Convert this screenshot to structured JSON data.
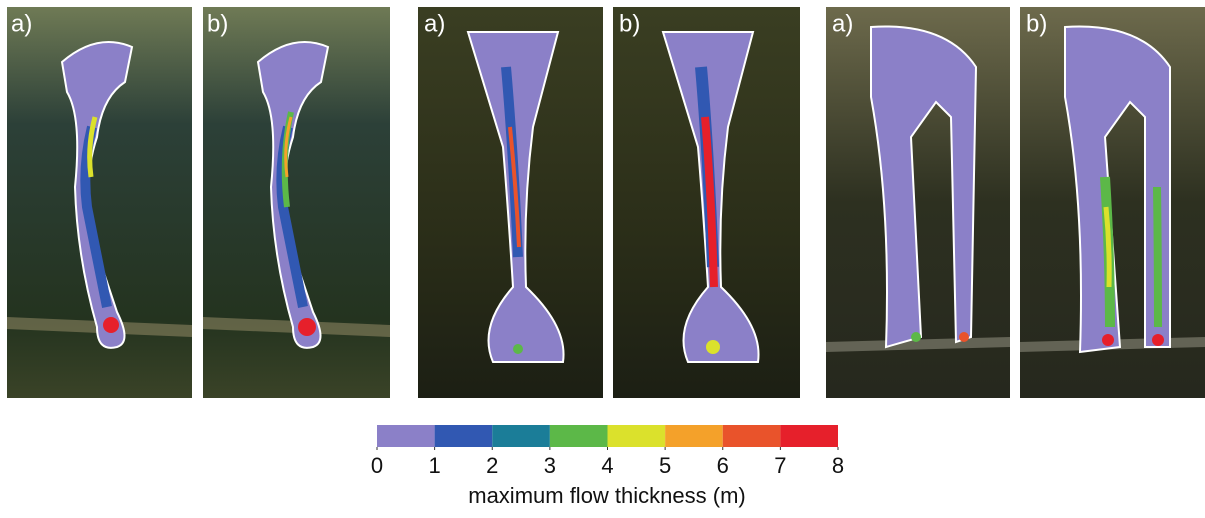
{
  "panels": [
    {
      "label": "a)"
    },
    {
      "label": "b)"
    },
    {
      "label": "a)"
    },
    {
      "label": "b)"
    },
    {
      "label": "a)"
    },
    {
      "label": "b)"
    }
  ],
  "colorbar": {
    "ticks": [
      0,
      1,
      2,
      3,
      4,
      5,
      6,
      7,
      8
    ],
    "colors": [
      "#8b80c8",
      "#3158b2",
      "#1b7d98",
      "#5cb848",
      "#dbe12c",
      "#f4a12a",
      "#e9532b",
      "#e6202b"
    ],
    "label": "maximum flow thickness (m)"
  }
}
